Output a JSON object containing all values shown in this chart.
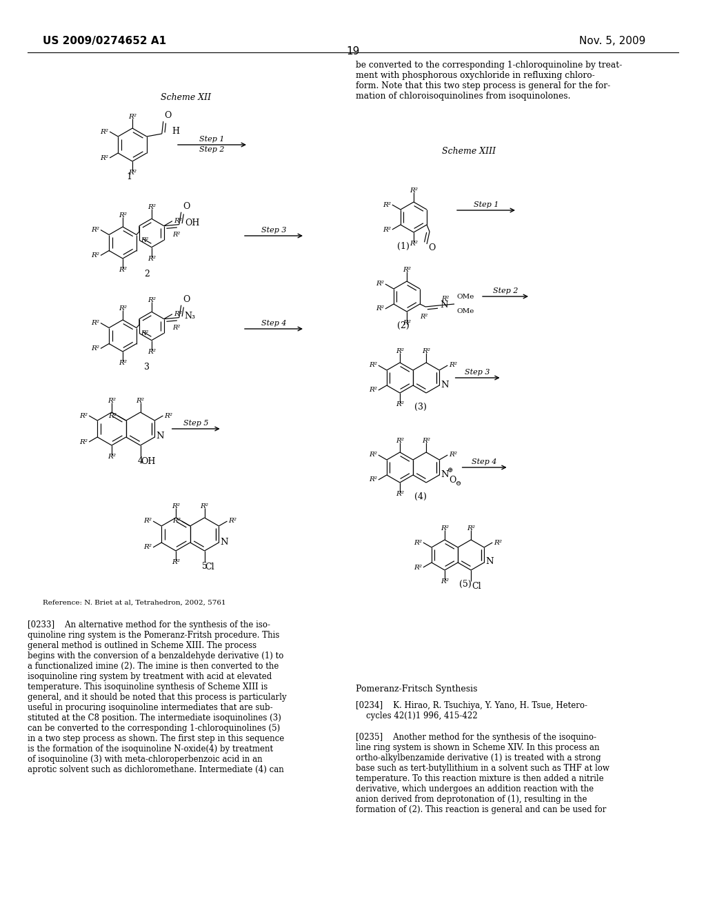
{
  "page_header_left": "US 2009/0274652 A1",
  "page_header_right": "Nov. 5, 2009",
  "page_number": "19",
  "bg": "#ffffff",
  "scheme_xii_title": "Scheme XII",
  "scheme_xiii_title": "Scheme XIII",
  "reference_text": "Reference: N. Briet at al, Tetrahedron, 2002, 5761",
  "pomeranz_title": "Pomeranz-Fritsch Synthesis",
  "right_top_text": "be converted to the corresponding 1-chloroquinoline by treat-\nment with phosphorous oxychloride in refluxing chloro-\nform. Note that this two step process is general for the for-\nmation of chloroisoquinolines from isoquinolones.",
  "para233": "[0233]    An alternative method for the synthesis of the iso-\nquinoline ring system is the Pomeranz-Fritsh procedure. This\ngeneral method is outlined in Scheme XIII. The process\nbegins with the conversion of a benzaldehyde derivative (1) to\na functionalized imine (2). The imine is then converted to the\nisoquinoline ring system by treatment with acid at elevated\ntemperature. This isoquinoline synthesis of Scheme XIII is\ngeneral, and it should be noted that this process is particularly\nuseful in procuring isoquinoline intermediates that are sub-\nstituted at the C8 position. The intermediate isoquinolines (3)\ncan be converted to the corresponding 1-chloroquinolines (5)\nin a two step process as shown. The first step in this sequence\nis the formation of the isoquinoline N-oxide(4) by treatment\nof isoquinoline (3) with meta-chloroperbenzoic acid in an\naprotic solvent such as dichloromethane. Intermediate (4) can",
  "para234": "[0234]    K. Hirao, R. Tsuchiya, Y. Yano, H. Tsue, Hetero-\n    cycles 42(1)1 996, 415-422",
  "para235": "[0235]    Another method for the synthesis of the isoquino-\nline ring system is shown in Scheme XIV. In this process an\northo-alkylbenzamide derivative (1) is treated with a strong\nbase such as tert-butyllithium in a solvent such as THF at low\ntemperature. To this reaction mixture is then added a nitrile\nderivative, which undergoes an addition reaction with the\nanion derived from deprotonation of (1), resulting in the\nformation of (2). This reaction is general and can be used for"
}
